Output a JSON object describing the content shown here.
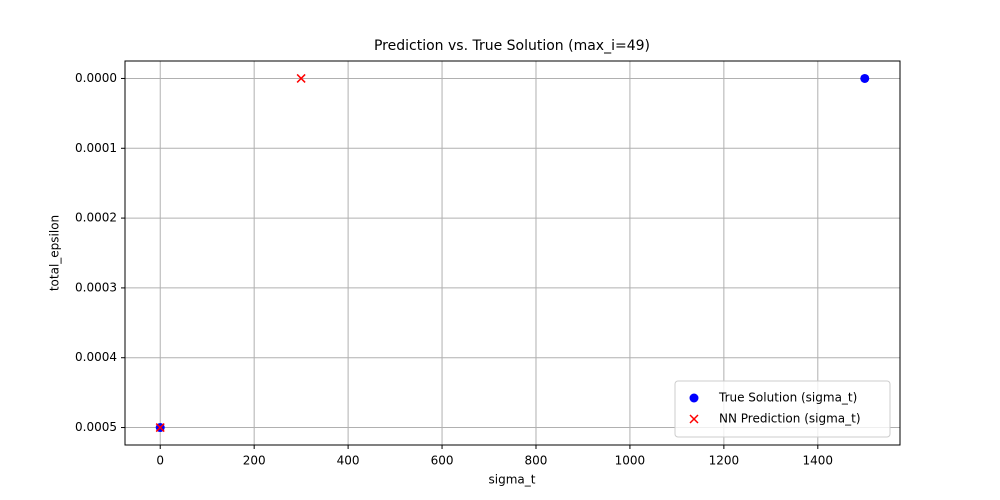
{
  "chart_data": {
    "type": "scatter",
    "title": "Prediction vs. True Solution (max_i=49)",
    "x_label": "sigma_t",
    "y_label": "total_epsilon",
    "series": [
      {
        "name": "True Solution (sigma_t)",
        "color": "#0000ff",
        "marker": "o",
        "x": [
          1500,
          0
        ],
        "values": [
          0,
          0.0005
        ]
      },
      {
        "name": "NN Prediction (sigma_t)",
        "color": "#ff0000",
        "marker": "x",
        "x": [
          300,
          0
        ],
        "values": [
          0,
          0.0005
        ]
      }
    ],
    "xlim": [
      -75,
      1575
    ],
    "xticks": [
      0,
      200,
      400,
      600,
      800,
      1000,
      1200,
      1400
    ],
    "ylim": [
      0.000525,
      -2.5e-05
    ],
    "yticks": [
      {
        "value": 0,
        "label": "0.0000"
      },
      0.0001,
      0.0002,
      0.0003,
      0.0004,
      0.0005
    ],
    "grid": true,
    "legend": "lower right"
  }
}
